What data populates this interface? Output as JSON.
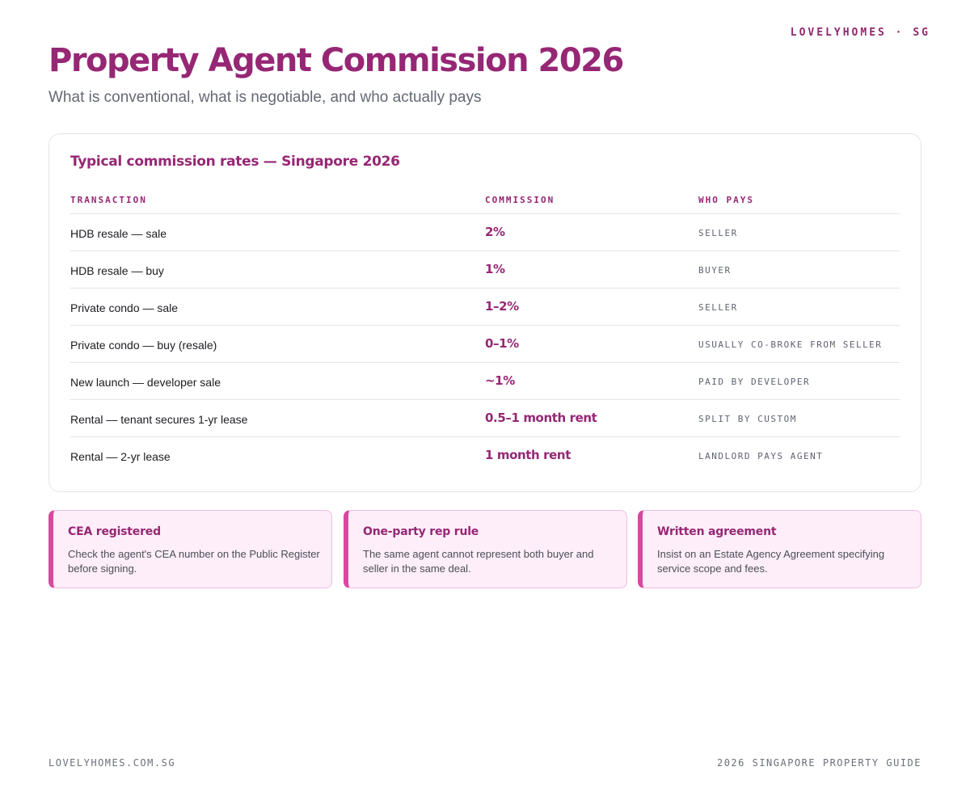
{
  "header": {
    "brand": "LOVELYHOMES · SG",
    "title": "Property Agent Commission 2026",
    "subtitle": "What is conventional, what is negotiable, and who actually pays"
  },
  "table_card": {
    "title": "Typical commission rates — Singapore 2026",
    "columns": [
      "TRANSACTION",
      "COMMISSION",
      "WHO PAYS"
    ],
    "rows": [
      {
        "transaction": "HDB resale — sale",
        "commission": "2%",
        "who_pays": "SELLER"
      },
      {
        "transaction": "HDB resale — buy",
        "commission": "1%",
        "who_pays": "BUYER"
      },
      {
        "transaction": "Private condo — sale",
        "commission": "1–2%",
        "who_pays": "SELLER"
      },
      {
        "transaction": "Private condo — buy (resale)",
        "commission": "0–1%",
        "who_pays": "USUALLY CO-BROKE FROM SELLER"
      },
      {
        "transaction": "New launch — developer sale",
        "commission": "~1%",
        "who_pays": "PAID BY DEVELOPER"
      },
      {
        "transaction": "Rental — tenant secures 1-yr lease",
        "commission": "0.5–1 month rent",
        "who_pays": "SPLIT BY CUSTOM"
      },
      {
        "transaction": "Rental — 2-yr lease",
        "commission": "1 month rent",
        "who_pays": "LANDLORD PAYS AGENT"
      }
    ]
  },
  "tips": [
    {
      "title": "CEA registered",
      "body": "Check the agent's CEA number on the Public Register before signing."
    },
    {
      "title": "One-party rep rule",
      "body": "The same agent cannot represent both buyer and seller in the same deal."
    },
    {
      "title": "Written agreement",
      "body": "Insist on an Estate Agency Agreement specifying service scope and fees."
    }
  ],
  "footer": {
    "left": "LOVELYHOMES.COM.SG",
    "right": "2026 SINGAPORE PROPERTY GUIDE"
  },
  "colors": {
    "accent": "#962774",
    "tip_background": "#fdeef9",
    "tip_border": "#d9479f"
  }
}
